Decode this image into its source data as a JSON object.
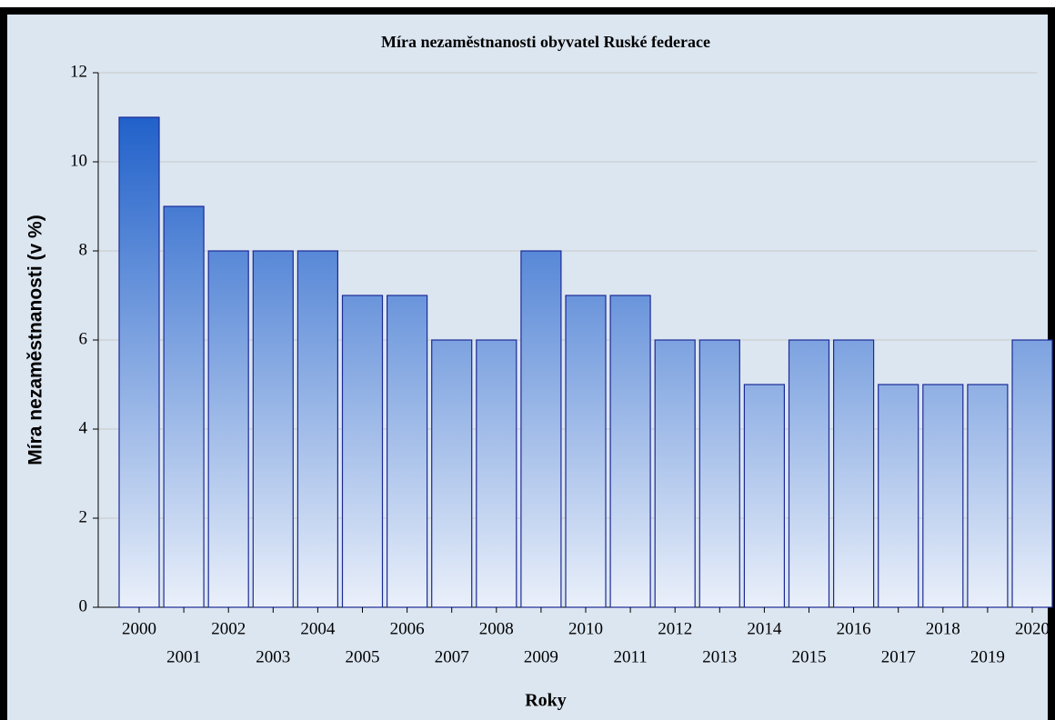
{
  "chart_data": {
    "type": "bar",
    "title": "Míra nezaměstnanosti obyvatel Ruské federace",
    "x_label": "Roky",
    "y_label": "Míra nezaměstnanosti (v %)",
    "categories": [
      "2000",
      "2001",
      "2002",
      "2003",
      "2004",
      "2005",
      "2006",
      "2007",
      "2008",
      "2009",
      "2010",
      "2011",
      "2012",
      "2013",
      "2014",
      "2015",
      "2016",
      "2017",
      "2018",
      "2019",
      "2020"
    ],
    "values": [
      11,
      9,
      8,
      8,
      8,
      7,
      7,
      6,
      6,
      8,
      7,
      7,
      6,
      6,
      5,
      6,
      6,
      5,
      5,
      5,
      6
    ],
    "color": "#1a5cc8",
    "ylim": [
      0,
      12
    ],
    "yticks": [
      0,
      2,
      4,
      6,
      8,
      10,
      12
    ],
    "grid": true
  }
}
